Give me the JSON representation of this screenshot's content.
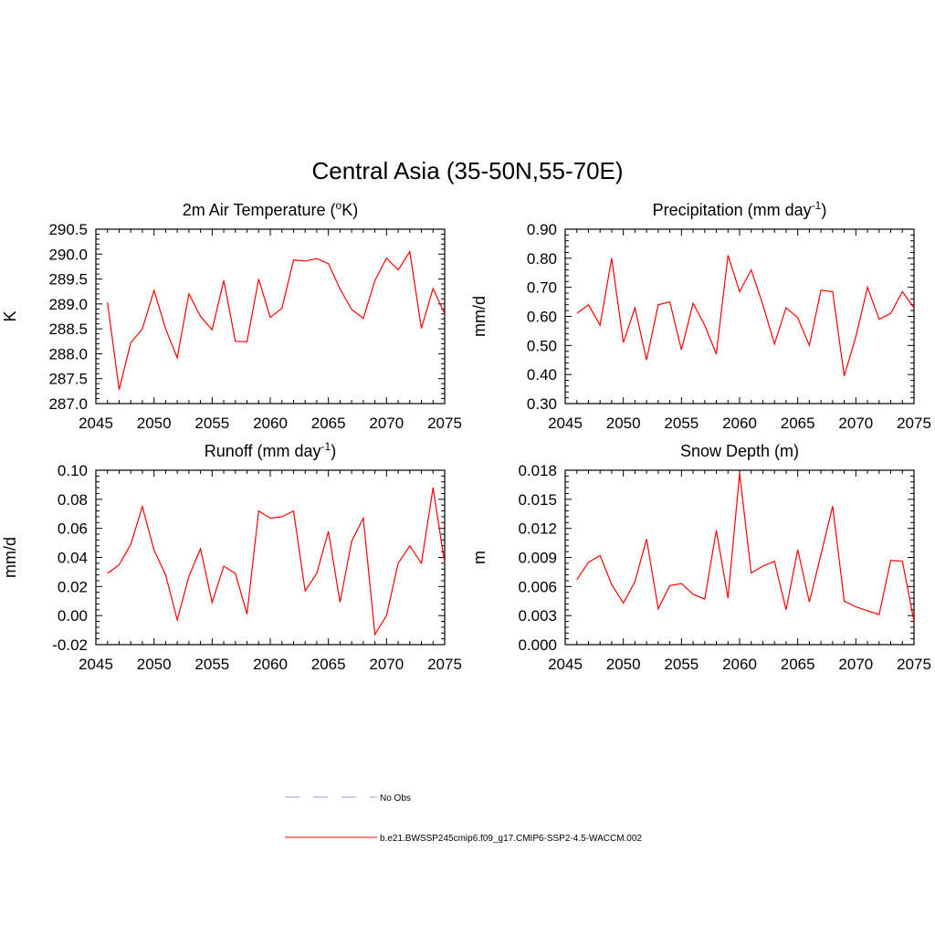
{
  "figure": {
    "title": "Central Asia (35-50N,55-70E)"
  },
  "legend": {
    "items": [
      {
        "label": "No Obs",
        "color": "#9999dd",
        "style": "dashed"
      },
      {
        "label": "b.e21.BWSSP245cmip6.f09_g17.CMIP6-SSP2-4.5-WACCM.002",
        "color": "#ff0000",
        "style": "solid"
      }
    ]
  },
  "chart_data": [
    {
      "type": "line",
      "title": "2m Air Temperature (",
      "title_sup": "o",
      "title_tail": "K)",
      "ylabel": "K",
      "xlim": [
        2045,
        2075
      ],
      "ylim": [
        287.0,
        290.5
      ],
      "xticks": [
        "2045",
        "2050",
        "2055",
        "2060",
        "2065",
        "2070",
        "2075"
      ],
      "yticks": [
        "287.0",
        "287.5",
        "288.0",
        "288.5",
        "289.0",
        "289.5",
        "290.0",
        "290.5"
      ],
      "x": [
        2046,
        2047,
        2048,
        2049,
        2050,
        2051,
        2052,
        2053,
        2054,
        2055,
        2056,
        2057,
        2058,
        2059,
        2060,
        2061,
        2062,
        2063,
        2064,
        2065,
        2066,
        2067,
        2068,
        2069,
        2070,
        2071,
        2072,
        2073,
        2074,
        2075
      ],
      "series": [
        {
          "color": "#ff0000",
          "values": [
            289.03,
            287.28,
            288.22,
            288.5,
            289.27,
            288.5,
            287.92,
            289.2,
            288.75,
            288.48,
            289.47,
            288.25,
            288.24,
            289.5,
            288.73,
            288.91,
            289.88,
            289.86,
            289.91,
            289.81,
            289.3,
            288.89,
            288.71,
            289.47,
            289.92,
            289.68,
            290.05,
            288.51,
            289.31,
            288.8
          ]
        }
      ]
    },
    {
      "type": "line",
      "title": "Precipitation (mm day",
      "title_sup": "-1",
      "title_tail": ")",
      "ylabel": "mm/d",
      "xlim": [
        2045,
        2075
      ],
      "ylim": [
        0.3,
        0.9
      ],
      "xticks": [
        "2045",
        "2050",
        "2055",
        "2060",
        "2065",
        "2070",
        "2075"
      ],
      "yticks": [
        "0.30",
        "0.40",
        "0.50",
        "0.60",
        "0.70",
        "0.80",
        "0.90"
      ],
      "x": [
        2046,
        2047,
        2048,
        2049,
        2050,
        2051,
        2052,
        2053,
        2054,
        2055,
        2056,
        2057,
        2058,
        2059,
        2060,
        2061,
        2062,
        2063,
        2064,
        2065,
        2066,
        2067,
        2068,
        2069,
        2070,
        2071,
        2072,
        2073,
        2074,
        2075
      ],
      "series": [
        {
          "color": "#ff0000",
          "values": [
            0.61,
            0.64,
            0.57,
            0.8,
            0.51,
            0.63,
            0.45,
            0.64,
            0.65,
            0.485,
            0.645,
            0.57,
            0.47,
            0.81,
            0.685,
            0.76,
            0.64,
            0.505,
            0.63,
            0.595,
            0.5,
            0.69,
            0.685,
            0.395,
            0.53,
            0.7,
            0.59,
            0.61,
            0.685,
            0.63
          ]
        }
      ]
    },
    {
      "type": "line",
      "title": "Runoff (mm day",
      "title_sup": "-1",
      "title_tail": ")",
      "ylabel": "mm/d",
      "xlim": [
        2045,
        2075
      ],
      "ylim": [
        -0.02,
        0.1
      ],
      "xticks": [
        "2045",
        "2050",
        "2055",
        "2060",
        "2065",
        "2070",
        "2075"
      ],
      "yticks": [
        "-0.02",
        "0.00",
        "0.02",
        "0.04",
        "0.06",
        "0.08",
        "0.10"
      ],
      "x": [
        2046,
        2047,
        2048,
        2049,
        2050,
        2051,
        2052,
        2053,
        2054,
        2055,
        2056,
        2057,
        2058,
        2059,
        2060,
        2061,
        2062,
        2063,
        2064,
        2065,
        2066,
        2067,
        2068,
        2069,
        2070,
        2071,
        2072,
        2073,
        2074,
        2075
      ],
      "series": [
        {
          "color": "#ff0000",
          "values": [
            0.029,
            0.035,
            0.049,
            0.075,
            0.045,
            0.028,
            -0.003,
            0.027,
            0.046,
            0.009,
            0.034,
            0.029,
            0.001,
            0.072,
            0.067,
            0.068,
            0.072,
            0.017,
            0.029,
            0.058,
            0.009,
            0.051,
            0.067,
            -0.013,
            0.0,
            0.036,
            0.048,
            0.036,
            0.088,
            0.036
          ]
        }
      ]
    },
    {
      "type": "line",
      "title": "Snow Depth (m)",
      "title_sup": "",
      "title_tail": "",
      "ylabel": "m",
      "xlim": [
        2045,
        2075
      ],
      "ylim": [
        0.0,
        0.018
      ],
      "xticks": [
        "2045",
        "2050",
        "2055",
        "2060",
        "2065",
        "2070",
        "2075"
      ],
      "yticks": [
        "0.000",
        "0.003",
        "0.006",
        "0.009",
        "0.012",
        "0.015",
        "0.018"
      ],
      "x": [
        2046,
        2047,
        2048,
        2049,
        2050,
        2051,
        2052,
        2053,
        2054,
        2055,
        2056,
        2057,
        2058,
        2059,
        2060,
        2061,
        2062,
        2063,
        2064,
        2065,
        2066,
        2067,
        2068,
        2069,
        2070,
        2071,
        2072,
        2073,
        2074,
        2075
      ],
      "series": [
        {
          "color": "#ff0000",
          "values": [
            0.0067,
            0.0085,
            0.0092,
            0.0062,
            0.0043,
            0.0065,
            0.0109,
            0.0037,
            0.0061,
            0.0063,
            0.0052,
            0.0047,
            0.0118,
            0.0048,
            0.0177,
            0.0074,
            0.0081,
            0.0086,
            0.0036,
            0.0098,
            0.0044,
            0.0093,
            0.0143,
            0.0045,
            0.0039,
            0.0035,
            0.0031,
            0.0087,
            0.0086,
            0.0024
          ]
        }
      ]
    }
  ]
}
